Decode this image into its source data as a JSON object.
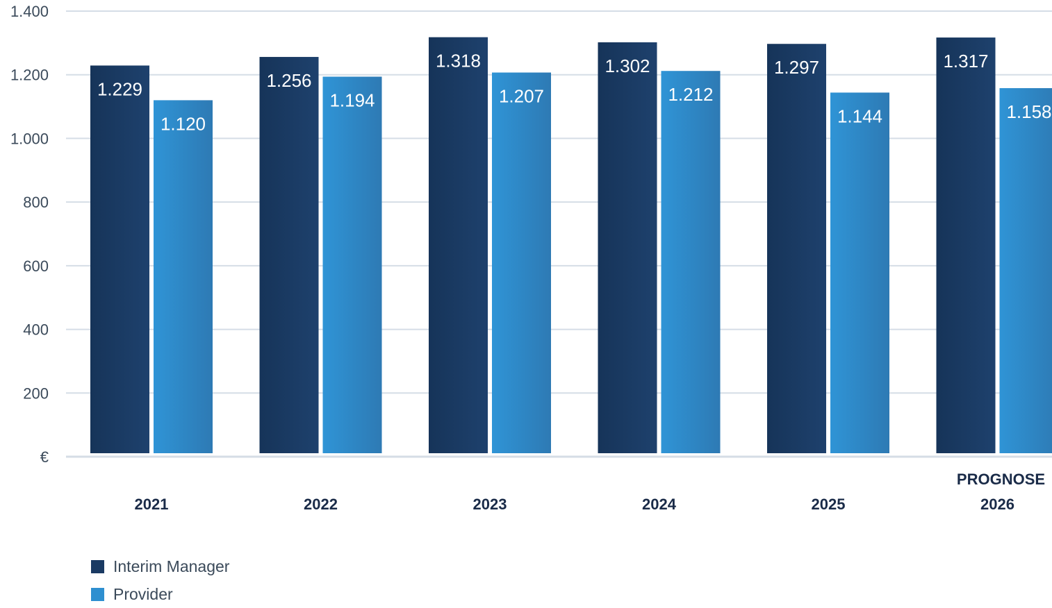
{
  "chart_data": {
    "type": "bar",
    "categories": [
      "2021",
      "2022",
      "2023",
      "2024",
      "2025",
      "2026"
    ],
    "category_prefix": {
      "2026": "PROGNOSE"
    },
    "series": [
      {
        "name": "Interim Manager",
        "color": "#1a3a63",
        "values": [
          1229,
          1256,
          1318,
          1302,
          1297,
          1317
        ],
        "labels": [
          "1.229",
          "1.256",
          "1.318",
          "1.302",
          "1.297",
          "1.317"
        ]
      },
      {
        "name": "Provider",
        "color": "#2e8fd0",
        "values": [
          1120,
          1194,
          1207,
          1212,
          1144,
          1158
        ],
        "labels": [
          "1.120",
          "1.194",
          "1.207",
          "1.212",
          "1.144",
          "1.158"
        ]
      }
    ],
    "ylim": [
      0,
      1400
    ],
    "yticks": [
      {
        "value": 0,
        "label": "€"
      },
      {
        "value": 200,
        "label": "200"
      },
      {
        "value": 400,
        "label": "400"
      },
      {
        "value": 600,
        "label": "600"
      },
      {
        "value": 800,
        "label": "800"
      },
      {
        "value": 1000,
        "label": "1.000"
      },
      {
        "value": 1200,
        "label": "1.200"
      },
      {
        "value": 1400,
        "label": "1.400"
      }
    ],
    "grid": true,
    "legend_position": "bottom-left",
    "title": "",
    "xlabel": "",
    "ylabel": ""
  }
}
